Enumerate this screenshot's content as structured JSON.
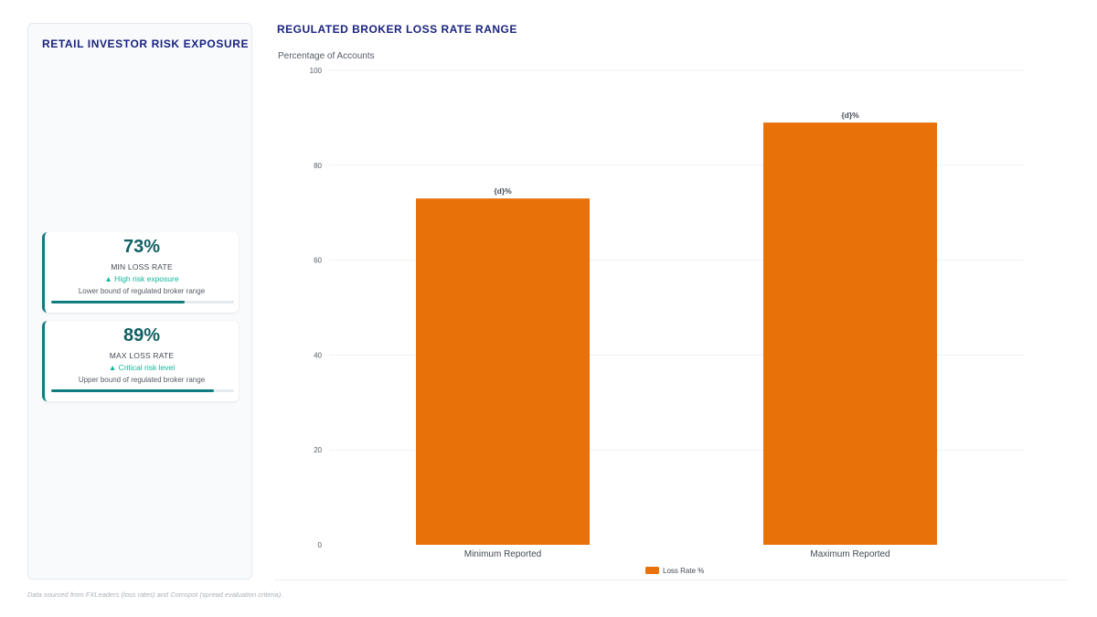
{
  "sidebar": {
    "title": "RETAIL INVESTOR RISK EXPOSURE",
    "cards": [
      {
        "value": "73%",
        "label": "MIN LOSS RATE",
        "trend": "▲ High risk exposure",
        "description": "Lower bound of regulated broker range",
        "progress": 0.73
      },
      {
        "value": "89%",
        "label": "MAX LOSS RATE",
        "trend": "▲ Critical risk level",
        "description": "Upper bound of regulated broker range",
        "progress": 0.89
      }
    ]
  },
  "colors": {
    "bar": "#e8710a",
    "accent": "#0f7c80",
    "title": "#1a237e",
    "trend": "#10b89a"
  },
  "chart_data": {
    "type": "bar",
    "title": "REGULATED BROKER LOSS RATE RANGE",
    "ylabel": "Percentage of Accounts",
    "categories": [
      "Minimum Reported",
      "Maximum Reported"
    ],
    "series": [
      {
        "name": "Loss Rate %",
        "values": [
          73,
          89
        ]
      }
    ],
    "data_labels": [
      "{d}%",
      "{d}%"
    ],
    "ylim": [
      0,
      100
    ],
    "yticks": [
      0,
      20,
      40,
      60,
      80,
      100
    ],
    "grid": true,
    "legend": "bottom-center"
  },
  "footer": {
    "note": "Data sourced from FXLeaders (loss rates) and Comspot (spread evaluation criteria)."
  }
}
